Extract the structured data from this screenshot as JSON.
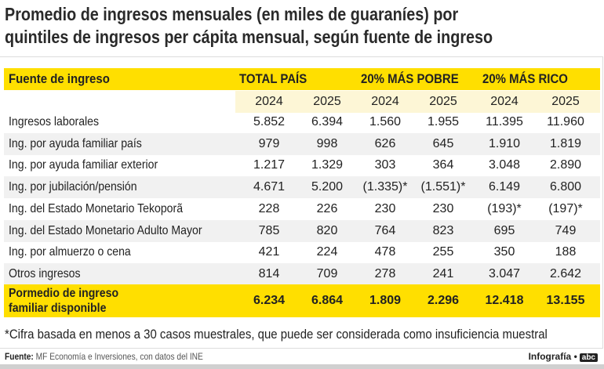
{
  "title_line1": "Promedio de ingresos mensuales (en miles de guaraníes) por",
  "title_line2": "quintiles de ingresos per cápita mensual, según fuente de ingreso",
  "header": {
    "label": "Fuente de ingreso",
    "groups": [
      "TOTAL PAÍS",
      "20% MÁS POBRE",
      "20% MÁS RICO"
    ]
  },
  "years": [
    "2024",
    "2025",
    "2024",
    "2025",
    "2024",
    "2025"
  ],
  "rows": [
    {
      "label": "Ingresos laborales",
      "values": [
        "5.852",
        "6.394",
        "1.560",
        "1.955",
        "11.395",
        "11.960"
      ]
    },
    {
      "label": "Ing. por ayuda familiar país",
      "values": [
        "979",
        "998",
        "626",
        "645",
        "1.910",
        "1.819"
      ]
    },
    {
      "label": "Ing. por ayuda familiar exterior",
      "values": [
        "1.217",
        "1.329",
        "303",
        "364",
        "3.048",
        "2.890"
      ]
    },
    {
      "label": "Ing. por jubilación/pensión",
      "values": [
        "4.671",
        "5.200",
        "(1.335)*",
        "(1.551)*",
        "6.149",
        "6.800"
      ]
    },
    {
      "label": "Ing. del Estado Monetario Tekoporã",
      "values": [
        "228",
        "226",
        "230",
        "230",
        "(193)*",
        "(197)*"
      ]
    },
    {
      "label": "Ing. del Estado Monetario Adulto Mayor",
      "values": [
        "785",
        "820",
        "764",
        "823",
        "695",
        "749"
      ]
    },
    {
      "label": "Ing. por almuerzo o cena",
      "values": [
        "421",
        "224",
        "478",
        "255",
        "350",
        "188"
      ]
    },
    {
      "label": "Otros ingresos",
      "values": [
        "814",
        "709",
        "278",
        "241",
        "3.047",
        "2.642"
      ]
    }
  ],
  "total": {
    "label_line1": "Pormedio de ingreso",
    "label_line2": "familiar disponible",
    "values": [
      "6.234",
      "6.864",
      "1.809",
      "2.296",
      "12.418",
      "13.155"
    ]
  },
  "footnote": "*Cifra basada en menos a 30 casos muestrales, que puede ser considerada como insuficiencia muestral",
  "source_label": "Fuente:",
  "source_text": "MF Economía e Inversiones, con datos del INE",
  "credit": "Infografía •",
  "logo": "abc",
  "colors": {
    "header_yellow": "#ffdf00",
    "year_bg": "#fdf6d6",
    "row_shade": "#f1f1f1"
  }
}
